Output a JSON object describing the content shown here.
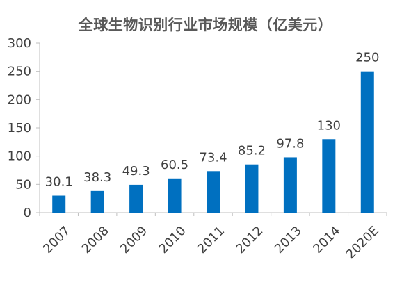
{
  "chart_data": {
    "type": "bar",
    "title": "全球生物识别行业市场规模（亿美元）",
    "categories": [
      "2007",
      "2008",
      "2009",
      "2010",
      "2011",
      "2012",
      "2013",
      "2014",
      "2020E"
    ],
    "values": [
      30.1,
      38.3,
      49.3,
      60.5,
      73.4,
      85.2,
      97.8,
      130,
      250
    ],
    "data_labels": [
      "30.1",
      "38.3",
      "49.3",
      "60.5",
      "73.4",
      "85.2",
      "97.8",
      "130",
      "250"
    ],
    "ylim": [
      0,
      300
    ],
    "yticks": [
      0,
      50,
      100,
      150,
      200,
      250,
      300
    ],
    "xlabel": "",
    "ylabel": "",
    "grid": false,
    "legend": "none",
    "bar_color": "#0070C0"
  }
}
